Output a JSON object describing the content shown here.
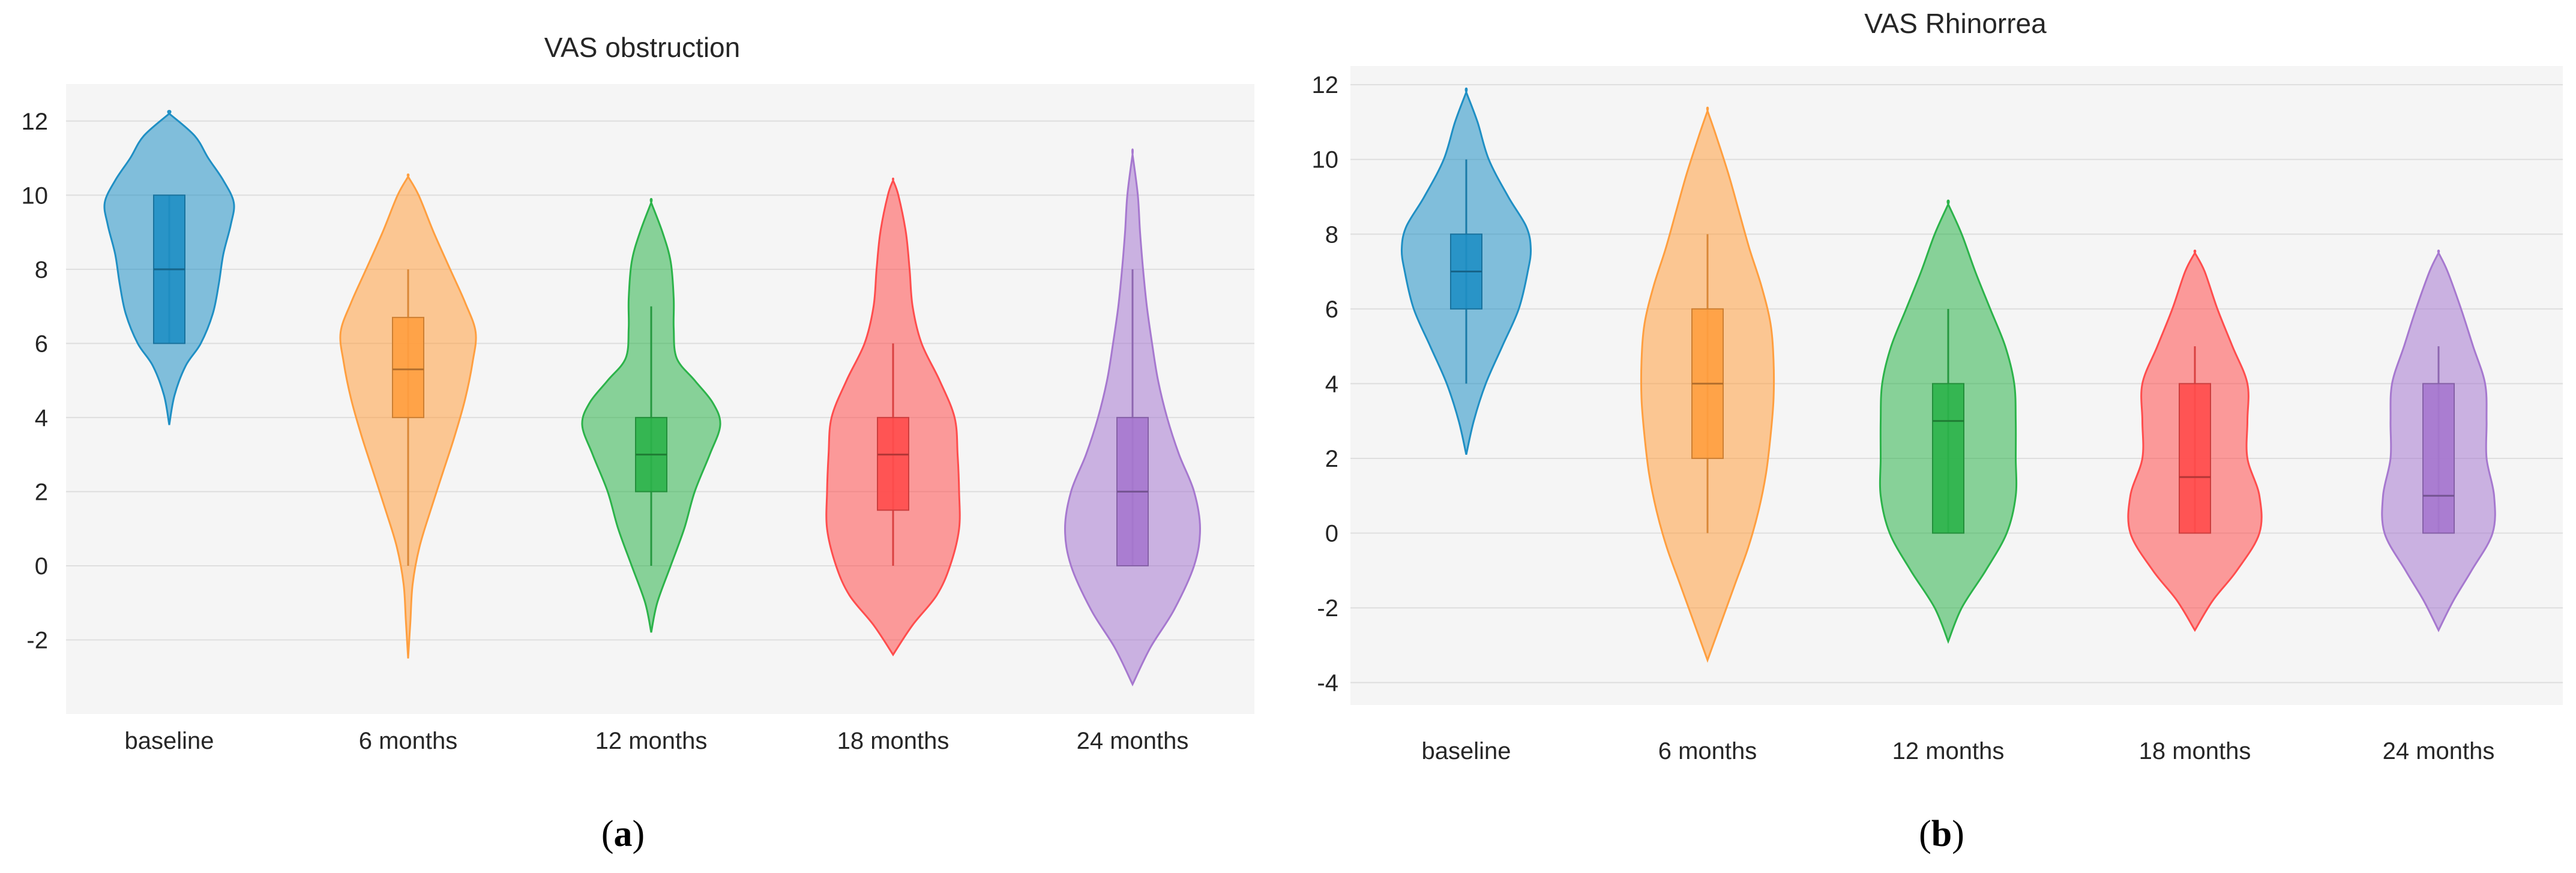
{
  "chart_data": [
    {
      "type": "violin",
      "title": "VAS obstruction",
      "panel_label": {
        "open": "(",
        "letter": "a",
        "close": ")"
      },
      "xlabel": "",
      "ylabel": "",
      "ylim": [
        -4,
        13
      ],
      "yticks": [
        -2,
        0,
        2,
        4,
        6,
        8,
        10,
        12
      ],
      "grid": true,
      "categories": [
        "baseline",
        "6 months",
        "12 months",
        "18 months",
        "24 months"
      ],
      "series": [
        {
          "name": "baseline",
          "color": "#1f8fc4",
          "box": {
            "min": 6,
            "q1": 6,
            "median": 8,
            "q3": 10,
            "max": 10
          },
          "violin_range": [
            3.8,
            12.2
          ],
          "density": [
            [
              3.8,
              0.0
            ],
            [
              4.6,
              0.07
            ],
            [
              5.4,
              0.22
            ],
            [
              6.0,
              0.42
            ],
            [
              6.8,
              0.58
            ],
            [
              7.6,
              0.66
            ],
            [
              8.4,
              0.72
            ],
            [
              9.2,
              0.82
            ],
            [
              9.8,
              0.86
            ],
            [
              10.4,
              0.72
            ],
            [
              11.0,
              0.52
            ],
            [
              11.6,
              0.34
            ],
            [
              12.2,
              0.0
            ]
          ]
        },
        {
          "name": "6 months",
          "color": "#ff9f40",
          "box": {
            "min": 0,
            "q1": 4,
            "median": 5.3,
            "q3": 6.7,
            "max": 8
          },
          "violin_range": [
            -2.5,
            10.5
          ],
          "density": [
            [
              -2.5,
              0.0
            ],
            [
              -1.5,
              0.03
            ],
            [
              -0.5,
              0.06
            ],
            [
              0.5,
              0.15
            ],
            [
              1.5,
              0.3
            ],
            [
              2.5,
              0.46
            ],
            [
              3.5,
              0.62
            ],
            [
              4.5,
              0.76
            ],
            [
              5.5,
              0.86
            ],
            [
              6.3,
              0.9
            ],
            [
              7.1,
              0.76
            ],
            [
              8.0,
              0.56
            ],
            [
              9.0,
              0.34
            ],
            [
              10.0,
              0.14
            ],
            [
              10.5,
              0.0
            ]
          ]
        },
        {
          "name": "12 months",
          "color": "#2cb34a",
          "box": {
            "min": 0,
            "q1": 2,
            "median": 3,
            "q3": 4,
            "max": 7
          },
          "violin_range": [
            -1.8,
            9.8
          ],
          "density": [
            [
              -1.8,
              0.0
            ],
            [
              -1.0,
              0.08
            ],
            [
              0.0,
              0.26
            ],
            [
              1.0,
              0.44
            ],
            [
              2.0,
              0.58
            ],
            [
              3.0,
              0.78
            ],
            [
              3.8,
              0.92
            ],
            [
              4.4,
              0.82
            ],
            [
              5.0,
              0.58
            ],
            [
              5.6,
              0.34
            ],
            [
              6.4,
              0.3
            ],
            [
              7.2,
              0.3
            ],
            [
              8.2,
              0.26
            ],
            [
              9.0,
              0.15
            ],
            [
              9.8,
              0.0
            ]
          ]
        },
        {
          "name": "18 months",
          "color": "#ff4d4d",
          "box": {
            "min": 0,
            "q1": 1.5,
            "median": 3,
            "q3": 4,
            "max": 6
          },
          "violin_range": [
            -2.4,
            10.4
          ],
          "density": [
            [
              -2.4,
              0.0
            ],
            [
              -1.6,
              0.26
            ],
            [
              -0.8,
              0.58
            ],
            [
              0.0,
              0.76
            ],
            [
              1.0,
              0.88
            ],
            [
              2.0,
              0.88
            ],
            [
              3.0,
              0.86
            ],
            [
              4.0,
              0.82
            ],
            [
              5.0,
              0.62
            ],
            [
              6.0,
              0.38
            ],
            [
              7.0,
              0.26
            ],
            [
              8.0,
              0.22
            ],
            [
              9.0,
              0.17
            ],
            [
              10.0,
              0.07
            ],
            [
              10.4,
              0.0
            ]
          ]
        },
        {
          "name": "24 months",
          "color": "#a678cf",
          "box": {
            "min": 0,
            "q1": 0,
            "median": 2,
            "q3": 4,
            "max": 8
          },
          "violin_range": [
            -3.2,
            11.1
          ],
          "density": [
            [
              -3.2,
              0.0
            ],
            [
              -2.2,
              0.24
            ],
            [
              -1.2,
              0.55
            ],
            [
              0.0,
              0.82
            ],
            [
              1.0,
              0.9
            ],
            [
              2.0,
              0.82
            ],
            [
              3.0,
              0.62
            ],
            [
              4.0,
              0.46
            ],
            [
              5.0,
              0.34
            ],
            [
              6.0,
              0.26
            ],
            [
              7.0,
              0.19
            ],
            [
              8.0,
              0.14
            ],
            [
              9.0,
              0.1
            ],
            [
              10.0,
              0.07
            ],
            [
              11.1,
              0.0
            ]
          ]
        }
      ]
    },
    {
      "type": "violin",
      "title": "VAS Rhinorrea",
      "panel_label": {
        "open": "(",
        "letter": "b",
        "close": ")"
      },
      "xlabel": "",
      "ylabel": "",
      "ylim": [
        -4.6,
        12.5
      ],
      "yticks": [
        -4,
        -2,
        0,
        2,
        4,
        6,
        8,
        10,
        12
      ],
      "grid": true,
      "categories": [
        "baseline",
        "6 months",
        "12 months",
        "18 months",
        "24 months"
      ],
      "series": [
        {
          "name": "baseline",
          "color": "#1f8fc4",
          "box": {
            "min": 4,
            "q1": 6,
            "median": 7,
            "q3": 8,
            "max": 10
          },
          "violin_range": [
            2.1,
            11.8
          ],
          "density": [
            [
              2.1,
              0.0
            ],
            [
              3.0,
              0.1
            ],
            [
              4.0,
              0.26
            ],
            [
              5.0,
              0.48
            ],
            [
              6.0,
              0.7
            ],
            [
              7.0,
              0.82
            ],
            [
              7.6,
              0.86
            ],
            [
              8.2,
              0.8
            ],
            [
              9.0,
              0.56
            ],
            [
              10.0,
              0.3
            ],
            [
              11.0,
              0.15
            ],
            [
              11.8,
              0.0
            ]
          ]
        },
        {
          "name": "6 months",
          "color": "#ff9f40",
          "box": {
            "min": 0,
            "q1": 2,
            "median": 4,
            "q3": 6,
            "max": 8
          },
          "violin_range": [
            -3.4,
            11.3
          ],
          "density": [
            [
              -3.4,
              0.0
            ],
            [
              -2.4,
              0.18
            ],
            [
              -1.4,
              0.36
            ],
            [
              -0.4,
              0.54
            ],
            [
              0.6,
              0.68
            ],
            [
              1.6,
              0.78
            ],
            [
              2.6,
              0.84
            ],
            [
              3.6,
              0.88
            ],
            [
              4.6,
              0.88
            ],
            [
              5.6,
              0.84
            ],
            [
              6.6,
              0.72
            ],
            [
              7.6,
              0.56
            ],
            [
              8.6,
              0.42
            ],
            [
              9.6,
              0.28
            ],
            [
              10.6,
              0.12
            ],
            [
              11.3,
              0.0
            ]
          ]
        },
        {
          "name": "12 months",
          "color": "#2cb34a",
          "box": {
            "min": 0,
            "q1": 0,
            "median": 3,
            "q3": 4,
            "max": 6
          },
          "violin_range": [
            -2.9,
            8.8
          ],
          "density": [
            [
              -2.9,
              0.0
            ],
            [
              -2.0,
              0.18
            ],
            [
              -1.0,
              0.5
            ],
            [
              0.0,
              0.78
            ],
            [
              1.0,
              0.9
            ],
            [
              2.0,
              0.9
            ],
            [
              3.0,
              0.9
            ],
            [
              4.0,
              0.88
            ],
            [
              5.0,
              0.76
            ],
            [
              6.0,
              0.56
            ],
            [
              7.0,
              0.36
            ],
            [
              8.0,
              0.18
            ],
            [
              8.8,
              0.0
            ]
          ]
        },
        {
          "name": "18 months",
          "color": "#ff4d4d",
          "box": {
            "min": 0,
            "q1": 0,
            "median": 1.5,
            "q3": 4,
            "max": 5
          },
          "violin_range": [
            -2.6,
            7.5
          ],
          "density": [
            [
              -2.6,
              0.0
            ],
            [
              -1.8,
              0.24
            ],
            [
              -1.0,
              0.56
            ],
            [
              0.0,
              0.86
            ],
            [
              1.0,
              0.86
            ],
            [
              2.0,
              0.7
            ],
            [
              3.0,
              0.7
            ],
            [
              4.0,
              0.7
            ],
            [
              5.0,
              0.5
            ],
            [
              6.0,
              0.3
            ],
            [
              7.0,
              0.13
            ],
            [
              7.5,
              0.0
            ]
          ]
        },
        {
          "name": "24 months",
          "color": "#a678cf",
          "box": {
            "min": 0,
            "q1": 0,
            "median": 1,
            "q3": 4,
            "max": 5
          },
          "violin_range": [
            -2.6,
            7.5
          ],
          "density": [
            [
              -2.6,
              0.0
            ],
            [
              -1.8,
              0.2
            ],
            [
              -1.0,
              0.44
            ],
            [
              0.0,
              0.72
            ],
            [
              1.0,
              0.74
            ],
            [
              2.0,
              0.64
            ],
            [
              3.0,
              0.64
            ],
            [
              4.0,
              0.62
            ],
            [
              5.0,
              0.46
            ],
            [
              6.0,
              0.3
            ],
            [
              7.0,
              0.12
            ],
            [
              7.5,
              0.0
            ]
          ]
        }
      ]
    }
  ]
}
